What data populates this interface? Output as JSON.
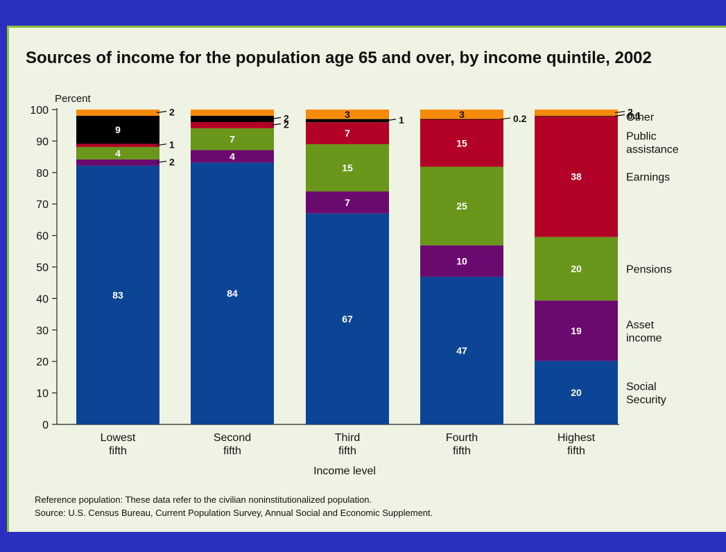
{
  "chart_data": {
    "type": "bar",
    "stacked": true,
    "title": "Sources of income for the population age 65 and over, by income quintile, 2002",
    "ylabel": "Percent",
    "xlabel": "Income level",
    "ylim": [
      0,
      100
    ],
    "yticks": [
      "0",
      "10",
      "20",
      "30",
      "40",
      "50",
      "60",
      "70",
      "80",
      "90",
      "100"
    ],
    "grid": false,
    "legend": "right",
    "categories": [
      [
        "Lowest",
        "fifth"
      ],
      [
        "Second",
        "fifth"
      ],
      [
        "Third",
        "fifth"
      ],
      [
        "Fourth",
        "fifth"
      ],
      [
        "Highest",
        "fifth"
      ]
    ],
    "series": [
      {
        "name": "Social Security",
        "legend_lines": [
          "Social",
          "Security"
        ],
        "color": "#0d4596",
        "values": [
          83,
          84,
          67,
          47,
          20
        ],
        "labels": [
          "83",
          "84",
          "67",
          "47",
          "20"
        ]
      },
      {
        "name": "Asset income",
        "legend_lines": [
          "Asset",
          "income"
        ],
        "color": "#6b0a6e",
        "values": [
          2,
          4,
          7,
          10,
          19
        ],
        "labels": [
          "2",
          "4",
          "7",
          "10",
          "19"
        ]
      },
      {
        "name": "Pensions",
        "legend_lines": [
          "Pensions"
        ],
        "color": "#6a961c",
        "values": [
          4,
          7,
          15,
          25,
          20
        ],
        "labels": [
          "4",
          "7",
          "15",
          "25",
          "20"
        ]
      },
      {
        "name": "Earnings",
        "legend_lines": [
          "Earnings"
        ],
        "color": "#b30027",
        "values": [
          1,
          2,
          7,
          15,
          38
        ],
        "labels": [
          "1",
          "2",
          "7",
          "15",
          "38"
        ]
      },
      {
        "name": "Public assistance",
        "legend_lines": [
          "Public",
          "assistance"
        ],
        "color": "#000000",
        "values": [
          9,
          2,
          1,
          0.2,
          0.1
        ],
        "labels": [
          "9",
          "2",
          "1",
          "0.2",
          "0.1"
        ]
      },
      {
        "name": "Other",
        "legend_lines": [
          "Other"
        ],
        "color": "#f58a0b",
        "values": [
          2,
          2,
          3,
          3,
          2
        ],
        "labels": [
          "2",
          "",
          "3",
          "3",
          "2"
        ]
      }
    ]
  },
  "footnotes": {
    "reference": "Reference population: These data refer to the civilian noninstitutionalized population.",
    "source": "Source: U.S. Census Bureau, Current Population Survey, Annual Social and Economic Supplement."
  }
}
